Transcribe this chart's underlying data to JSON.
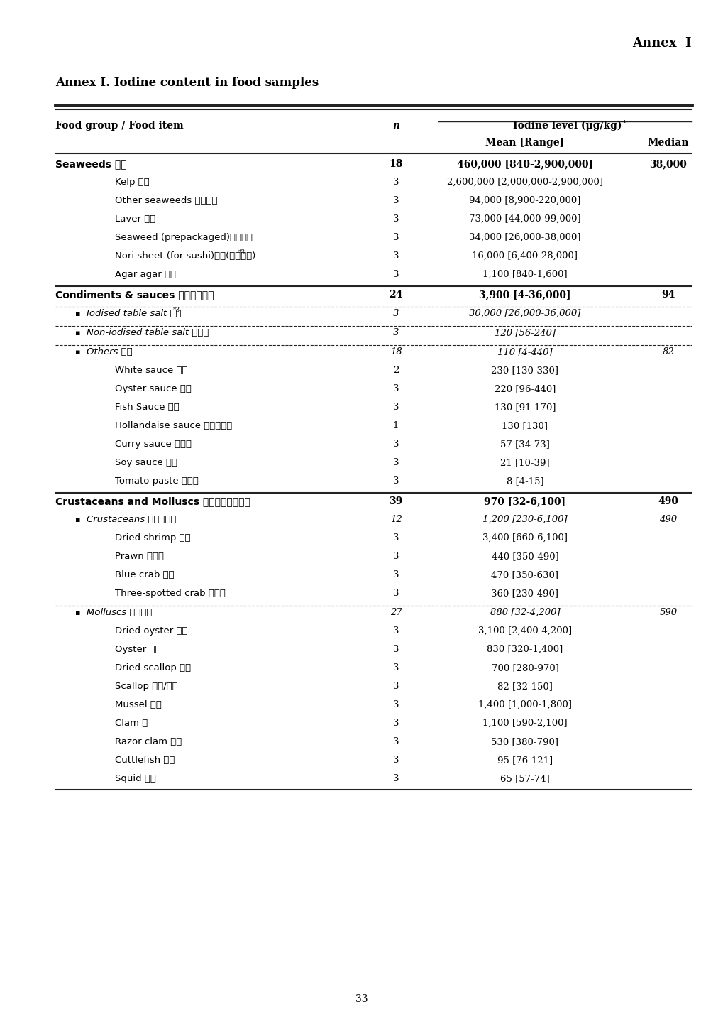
{
  "annex_label": "Annex  I",
  "title": "Annex I. Iodine content in food samples",
  "header_col1": "Food group / Food item",
  "header_col2": "n",
  "header_col3a": "Mean [Range]",
  "header_col3b": "Median",
  "page_number": "33",
  "rows": [
    {
      "food_en": "Seaweeds",
      "food_zh": " 藻類",
      "n": "18",
      "mean_range": "460,000 [840-2,900,000]",
      "median": "38,000",
      "style": "group_bold",
      "indent": 0,
      "separator": ""
    },
    {
      "food_en": "Kelp",
      "food_zh": " 海帶",
      "n": "3",
      "mean_range": "2,600,000 [2,000,000-2,900,000]",
      "median": "",
      "style": "subitem",
      "indent": 2,
      "separator": ""
    },
    {
      "food_en": "Other seaweeds",
      "food_zh": " 其他藻類",
      "n": "3",
      "mean_range": "94,000 [8,900-220,000]",
      "median": "",
      "style": "subitem",
      "indent": 2,
      "separator": ""
    },
    {
      "food_en": "Laver",
      "food_zh": " 紫菜",
      "n": "3",
      "mean_range": "73,000 [44,000-99,000]",
      "median": "",
      "style": "subitem",
      "indent": 2,
      "separator": ""
    },
    {
      "food_en": "Seaweed (prepackaged)",
      "food_zh": "零食紫菜",
      "n": "3",
      "mean_range": "34,000 [26,000-38,000]",
      "median": "",
      "style": "subitem",
      "indent": 2,
      "separator": ""
    },
    {
      "food_en": "Nori sheet (for sushi)",
      "food_zh": "紫菜(做壽司用)",
      "food_sup": "*3",
      "n": "3",
      "mean_range": "16,000 [6,400-28,000]",
      "median": "",
      "style": "subitem",
      "indent": 2,
      "separator": ""
    },
    {
      "food_en": "Agar agar",
      "food_zh": " 大菜",
      "n": "3",
      "mean_range": "1,100 [840-1,600]",
      "median": "",
      "style": "subitem",
      "indent": 2,
      "separator": ""
    },
    {
      "food_en": "Condiments & sauces",
      "food_zh": " 調味料及醬油",
      "n": "24",
      "mean_range": "3,900 [4-36,000]",
      "median": "94",
      "style": "group_bold",
      "indent": 0,
      "separator": "solid_above"
    },
    {
      "food_en": "Iodised table salt",
      "food_zh": " 碼鹽",
      "food_sup": "*3",
      "n": "3",
      "mean_range": "30,000 [26,000-36,000]",
      "median": "",
      "style": "bullet_italic",
      "indent": 1,
      "separator": "dashed_above"
    },
    {
      "food_en": "Non-iodised table salt",
      "food_zh": " 餐桌鹽",
      "n": "3",
      "mean_range": "120 [56-240]",
      "median": "",
      "style": "bullet_italic",
      "indent": 1,
      "separator": "dashed_above"
    },
    {
      "food_en": "Others",
      "food_zh": " 其他",
      "n": "18",
      "mean_range": "110 [4-440]",
      "median": "82",
      "style": "bullet_italic",
      "indent": 1,
      "separator": "dashed_above"
    },
    {
      "food_en": "White sauce",
      "food_zh": " 白汁",
      "n": "2",
      "mean_range": "230 [130-330]",
      "median": "",
      "style": "subitem",
      "indent": 2,
      "separator": ""
    },
    {
      "food_en": "Oyster sauce",
      "food_zh": " 豁油",
      "n": "3",
      "mean_range": "220 [96-440]",
      "median": "",
      "style": "subitem",
      "indent": 2,
      "separator": ""
    },
    {
      "food_en": "Fish Sauce",
      "food_zh": " 魚露",
      "n": "3",
      "mean_range": "130 [91-170]",
      "median": "",
      "style": "subitem",
      "indent": 2,
      "separator": ""
    },
    {
      "food_en": "Hollandaise sauce",
      "food_zh": " 荷蘭酸荶醬",
      "n": "1",
      "mean_range": "130 [130]",
      "median": "",
      "style": "subitem",
      "indent": 2,
      "separator": ""
    },
    {
      "food_en": "Curry sauce",
      "food_zh": " 咋哩醬",
      "n": "3",
      "mean_range": "57 [34-73]",
      "median": "",
      "style": "subitem",
      "indent": 2,
      "separator": ""
    },
    {
      "food_en": "Soy sauce",
      "food_zh": " 生抚",
      "n": "3",
      "mean_range": "21 [10-39]",
      "median": "",
      "style": "subitem",
      "indent": 2,
      "separator": ""
    },
    {
      "food_en": "Tomato paste",
      "food_zh": " 番茄醬",
      "n": "3",
      "mean_range": "8 [4-15]",
      "median": "",
      "style": "subitem",
      "indent": 2,
      "separator": ""
    },
    {
      "food_en": "Crustaceans and Molluscs",
      "food_zh": " 甲殼類及軟體動物",
      "n": "39",
      "mean_range": "970 [32-6,100]",
      "median": "490",
      "style": "group_bold",
      "indent": 0,
      "separator": "solid_above"
    },
    {
      "food_en": "Crustaceans",
      "food_zh": " 甲殼類動物",
      "n": "12",
      "mean_range": "1,200 [230-6,100]",
      "median": "490",
      "style": "bullet_italic",
      "indent": 1,
      "separator": ""
    },
    {
      "food_en": "Dried shrimp",
      "food_zh": " 蝦米",
      "n": "3",
      "mean_range": "3,400 [660-6,100]",
      "median": "",
      "style": "subitem",
      "indent": 2,
      "separator": ""
    },
    {
      "food_en": "Prawn",
      "food_zh": " 大花蝦",
      "n": "3",
      "mean_range": "440 [350-490]",
      "median": "",
      "style": "subitem",
      "indent": 2,
      "separator": ""
    },
    {
      "food_en": "Blue crab",
      "food_zh": " 花蟹",
      "n": "3",
      "mean_range": "470 [350-630]",
      "median": "",
      "style": "subitem",
      "indent": 2,
      "separator": ""
    },
    {
      "food_en": "Three-spotted crab",
      "food_zh": " 三點蟹",
      "n": "3",
      "mean_range": "360 [230-490]",
      "median": "",
      "style": "subitem",
      "indent": 2,
      "separator": ""
    },
    {
      "food_en": "Molluscs",
      "food_zh": " 軟體動物",
      "n": "27",
      "mean_range": "880 [32-4,200]",
      "median": "590",
      "style": "bullet_italic",
      "indent": 1,
      "separator": "dashed_above"
    },
    {
      "food_en": "Dried oyster",
      "food_zh": " 螠豉",
      "n": "3",
      "mean_range": "3,100 [2,400-4,200]",
      "median": "",
      "style": "subitem",
      "indent": 2,
      "separator": ""
    },
    {
      "food_en": "Oyster",
      "food_zh": " 生蘊",
      "n": "3",
      "mean_range": "830 [320-1,400]",
      "median": "",
      "style": "subitem",
      "indent": 2,
      "separator": ""
    },
    {
      "food_en": "Dried scallop",
      "food_zh": " 乾貝",
      "n": "3",
      "mean_range": "700 [280-970]",
      "median": "",
      "style": "subitem",
      "indent": 2,
      "separator": ""
    },
    {
      "food_en": "Scallop",
      "food_zh": " 帶屐/帶子",
      "n": "3",
      "mean_range": "82 [32-150]",
      "median": "",
      "style": "subitem",
      "indent": 2,
      "separator": ""
    },
    {
      "food_en": "Mussel",
      "food_zh": " 青口",
      "n": "3",
      "mean_range": "1,400 [1,000-1,800]",
      "median": "",
      "style": "subitem",
      "indent": 2,
      "separator": ""
    },
    {
      "food_en": "Clam",
      "food_zh": " 蝗",
      "n": "3",
      "mean_range": "1,100 [590-2,100]",
      "median": "",
      "style": "subitem",
      "indent": 2,
      "separator": ""
    },
    {
      "food_en": "Razor clam",
      "food_zh": " 蟴子",
      "n": "3",
      "mean_range": "530 [380-790]",
      "median": "",
      "style": "subitem",
      "indent": 2,
      "separator": ""
    },
    {
      "food_en": "Cuttlefish",
      "food_zh": " 墨魚",
      "n": "3",
      "mean_range": "95 [76-121]",
      "median": "",
      "style": "subitem",
      "indent": 2,
      "separator": ""
    },
    {
      "food_en": "Squid",
      "food_zh": " 魷魚",
      "n": "3",
      "mean_range": "65 [57-74]",
      "median": "",
      "style": "subitem",
      "indent": 2,
      "separator": ""
    }
  ]
}
